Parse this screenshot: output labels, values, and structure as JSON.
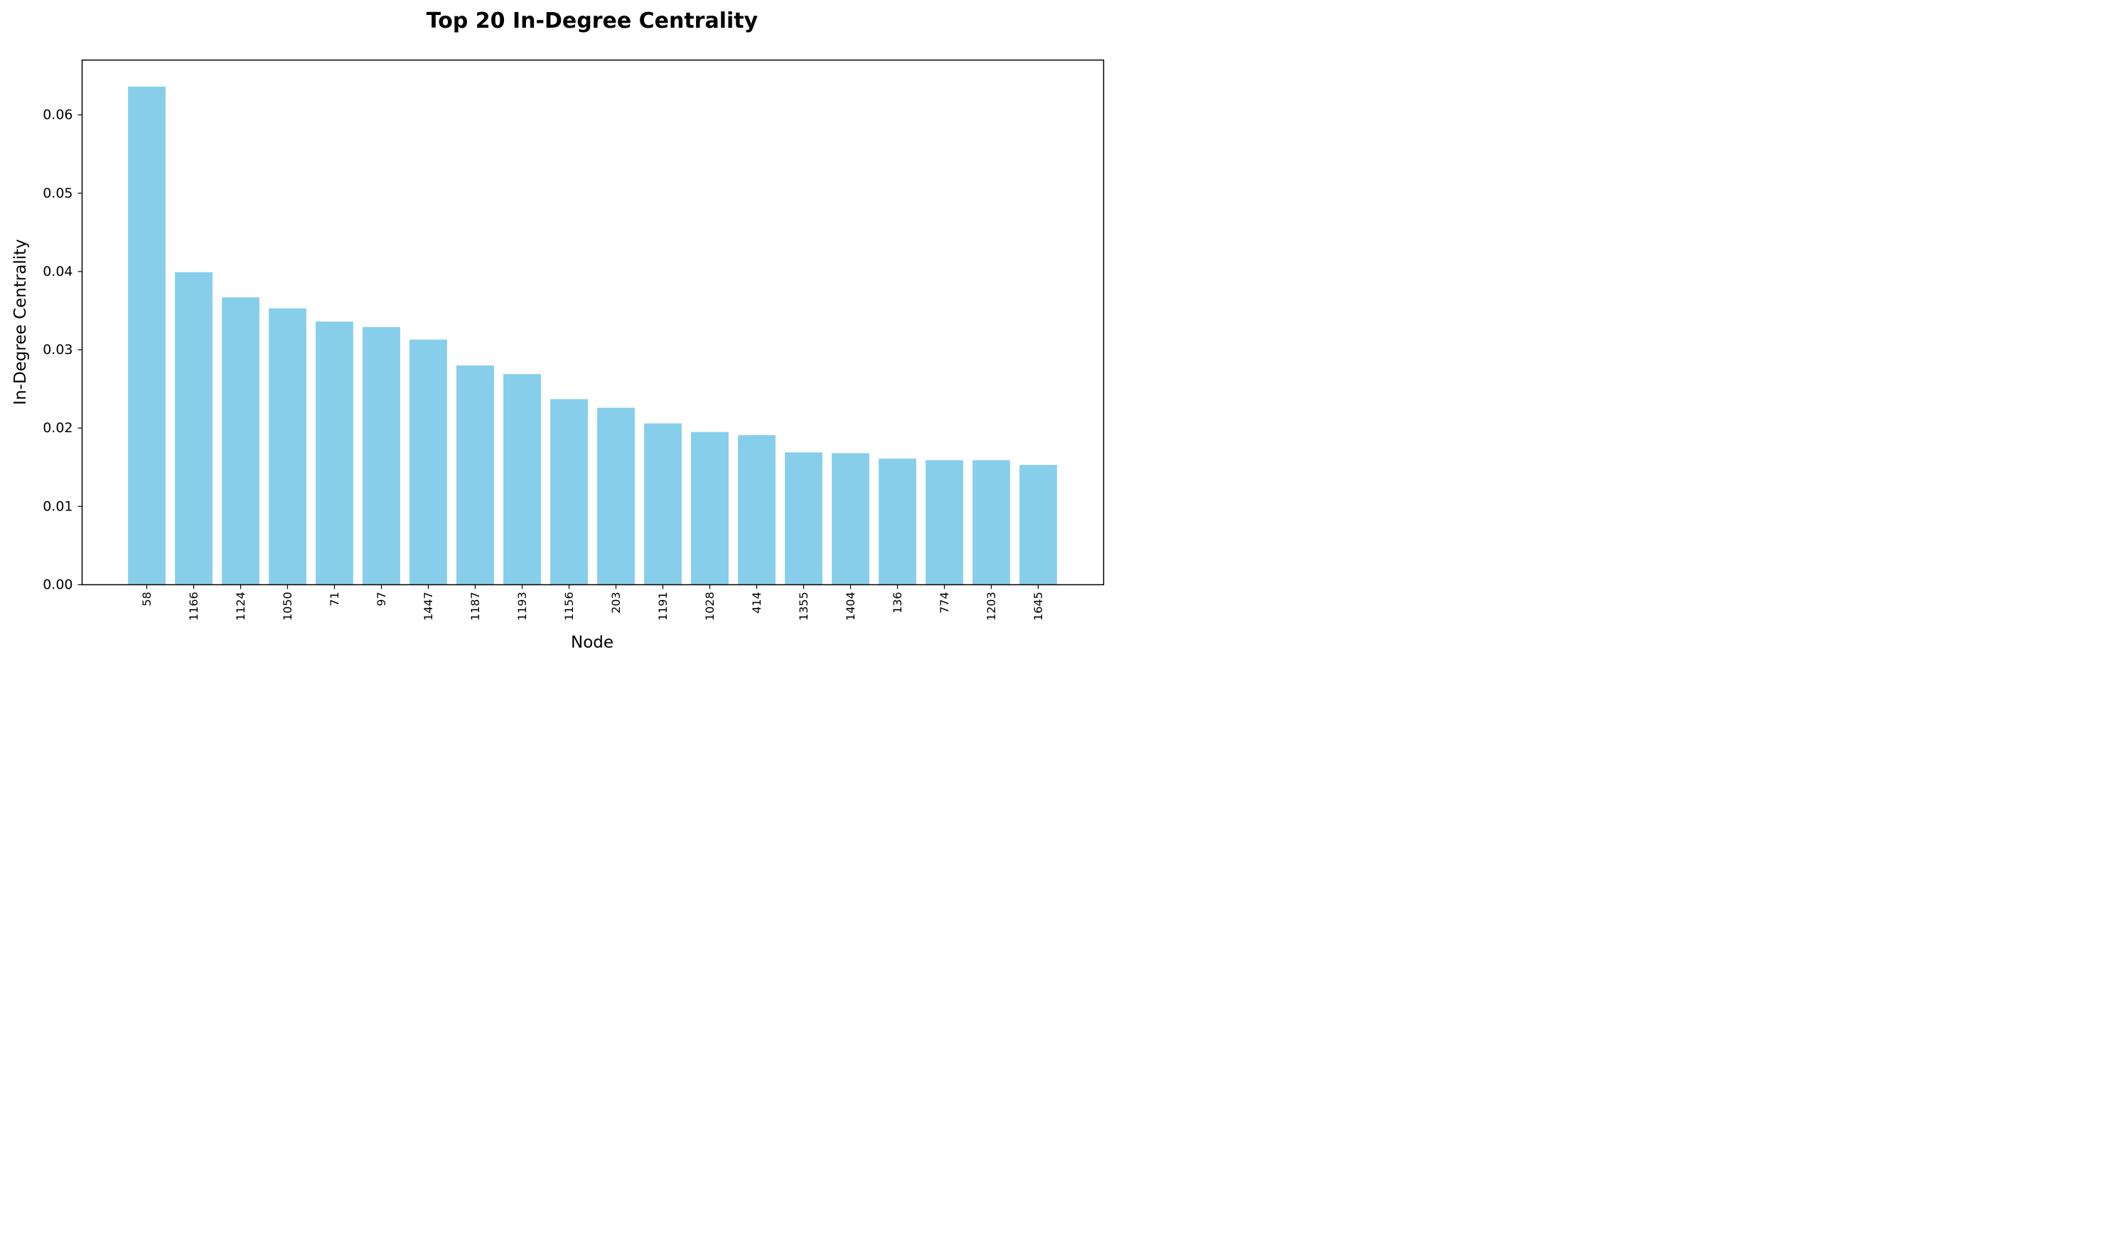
{
  "chart_data": {
    "type": "bar",
    "title": "Top 20 In-Degree Centrality",
    "xlabel": "Node",
    "ylabel": "In-Degree Centrality",
    "categories": [
      "58",
      "1166",
      "1124",
      "1050",
      "71",
      "97",
      "1447",
      "1187",
      "1193",
      "1156",
      "203",
      "1191",
      "1028",
      "414",
      "1355",
      "1404",
      "136",
      "774",
      "1203",
      "1645"
    ],
    "values": [
      0.0636,
      0.0399,
      0.0367,
      0.0353,
      0.0336,
      0.0329,
      0.0313,
      0.028,
      0.0269,
      0.0237,
      0.0226,
      0.0206,
      0.0195,
      0.0191,
      0.0169,
      0.0168,
      0.0161,
      0.0159,
      0.0159,
      0.0153
    ],
    "ylim": [
      0,
      0.067
    ],
    "yticks": [
      0.0,
      0.01,
      0.02,
      0.03,
      0.04,
      0.05,
      0.06
    ],
    "ytick_labels": [
      "0.00",
      "0.01",
      "0.02",
      "0.03",
      "0.04",
      "0.05",
      "0.06"
    ],
    "xtick_rotation": "vertical",
    "grid": false,
    "legend": "none",
    "colors": {
      "bar": "#87ceeb",
      "axis": "#000000"
    }
  }
}
